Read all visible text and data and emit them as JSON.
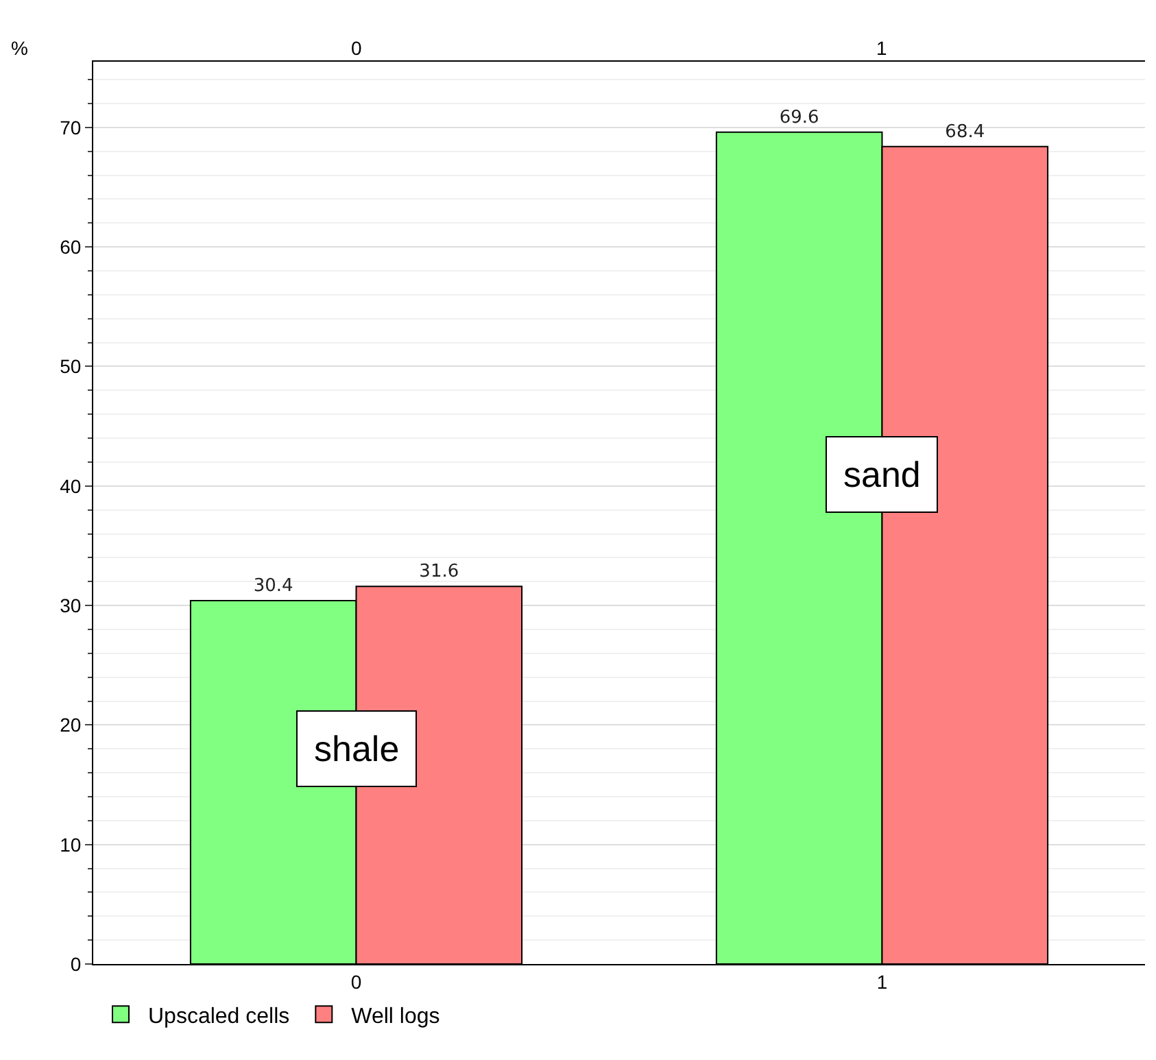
{
  "chart_data": {
    "type": "bar",
    "ylabel": "%",
    "categories": [
      "0",
      "1"
    ],
    "series": [
      {
        "name": "Upscaled cells",
        "color": "#80ff80",
        "values": [
          30.4,
          69.6
        ]
      },
      {
        "name": "Well logs",
        "color": "#ff8080",
        "values": [
          31.6,
          68.4
        ]
      }
    ],
    "ylim": [
      0,
      75.5
    ],
    "yticks": [
      0,
      10,
      20,
      30,
      40,
      50,
      60,
      70
    ],
    "annotations": [
      {
        "text": "shale",
        "x": "0",
        "y": 18
      },
      {
        "text": "sand",
        "x": "1",
        "y": 41
      }
    ],
    "data_labels": true,
    "grid": "y",
    "legend": "bottom left"
  }
}
